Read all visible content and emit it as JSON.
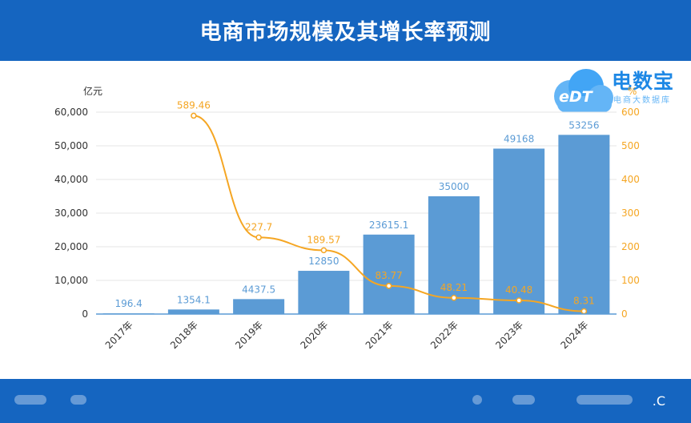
{
  "header": {
    "title": "电商市场规模及其增长率预测"
  },
  "logo": {
    "name": "电数宝",
    "sub": "电商大数据库",
    "mark": "eDT"
  },
  "footer": {
    "text": ".C"
  },
  "chart_data": {
    "type": "bar",
    "categories": [
      "2017年",
      "2018年",
      "2019年",
      "2020年",
      "2021年",
      "2022年",
      "2023年",
      "2024年"
    ],
    "left_unit": "亿元",
    "right_unit": "%",
    "ylim_left": [
      0,
      60000
    ],
    "ylim_right": [
      0,
      600
    ],
    "yticks_left": [
      "0",
      "10,000",
      "20,000",
      "30,000",
      "40,000",
      "50,000",
      "60,000"
    ],
    "yticks_right": [
      "0",
      "100",
      "200",
      "300",
      "400",
      "500",
      "600"
    ],
    "series": [
      {
        "type": "bar",
        "axis": "left",
        "color": "#5b9bd5",
        "values": [
          196.4,
          1354.1,
          4437.5,
          12850,
          23615.1,
          35000,
          49168,
          53256
        ],
        "labels": [
          "196.4",
          "1354.1",
          "4437.5",
          "12850",
          "23615.1",
          "35000",
          "49168",
          "53256"
        ]
      },
      {
        "type": "line",
        "axis": "right",
        "color": "#f5a623",
        "values": [
          null,
          589.46,
          227.7,
          189.57,
          83.77,
          48.21,
          40.48,
          8.31
        ],
        "labels": [
          "",
          "589.46",
          "227.7",
          "189.57",
          "83.77",
          "48.21",
          "40.48",
          "8.31"
        ]
      }
    ],
    "grid": true
  }
}
